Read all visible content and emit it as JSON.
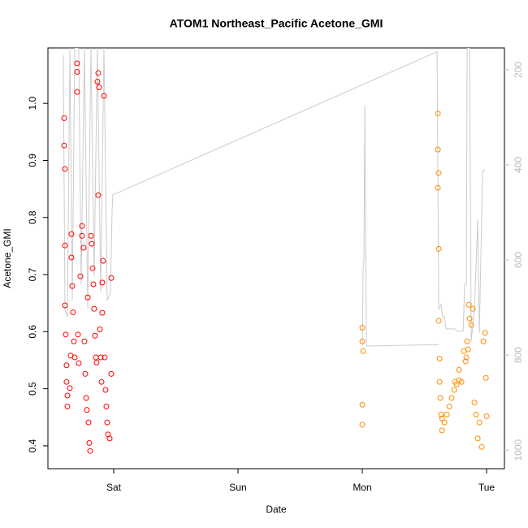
{
  "chart_data": {
    "type": "scatter",
    "title": "ATOM1 Northeast_Pacific Acetone_GMI",
    "x_label": "Date",
    "y_label": "Acetone_GMI",
    "xlim": [
      -12.7,
      75.45
    ],
    "xticks": [
      {
        "value": 0,
        "label": "Sat"
      },
      {
        "value": 24,
        "label": "Sun"
      },
      {
        "value": 48,
        "label": "Mon"
      },
      {
        "value": 72,
        "label": "Tue"
      }
    ],
    "ylim": [
      0.36,
      1.097
    ],
    "yticks": [
      0.4,
      0.5,
      0.6,
      0.7,
      0.8,
      0.9,
      {
        "value": 1,
        "label": "1.0"
      }
    ],
    "y2lim": [
      1039,
      154
    ],
    "y2ticks": [
      200,
      400,
      600,
      800,
      1000
    ],
    "y2_color": "#bbbbbb",
    "series": [
      {
        "color": "#ff0000",
        "mode": "points",
        "x": [
          -9.57,
          -9.57,
          -9.41,
          -9.41,
          -9.41,
          -9.26,
          -9.1,
          -9.1,
          -8.94,
          -8.94,
          -8.47,
          -8.32,
          -8.16,
          -8.16,
          -8.0,
          -7.85,
          -7.69,
          -7.53,
          -7.06,
          -7.06,
          -7.06,
          -6.9,
          -6.75,
          -6.43,
          -6.12,
          -6.12,
          -5.81,
          -5.65,
          -5.49,
          -5.33,
          -5.18,
          -5.02,
          -4.86,
          -4.71,
          -4.55,
          -4.39,
          -4.24,
          -4.08,
          -3.92,
          -3.77,
          -3.61,
          -3.45,
          -3.3,
          -3.14,
          -2.98,
          -2.98,
          -2.82,
          -2.67,
          -2.51,
          -2.35,
          -2.2,
          -2.2,
          -2.04,
          -1.88,
          -1.73,
          -1.57,
          -1.41,
          -1.26,
          -1.1,
          -0.78,
          -0.47,
          -0.47
        ],
        "values": [
          0.974,
          0.926,
          0.885,
          0.751,
          0.646,
          0.595,
          0.541,
          0.512,
          0.488,
          0.469,
          0.501,
          0.558,
          0.73,
          0.771,
          0.68,
          0.634,
          0.583,
          0.555,
          1.07,
          1.055,
          1.02,
          0.595,
          0.545,
          0.697,
          0.785,
          0.768,
          0.747,
          0.583,
          0.526,
          0.484,
          0.463,
          0.66,
          0.441,
          0.405,
          0.391,
          0.768,
          0.754,
          0.711,
          0.683,
          0.64,
          0.593,
          0.555,
          0.546,
          1.038,
          1.053,
          0.839,
          1.028,
          0.604,
          0.555,
          0.512,
          0.686,
          0.633,
          0.724,
          1.013,
          0.555,
          0.498,
          0.469,
          0.441,
          0.42,
          0.413,
          0.694,
          0.526
        ]
      },
      {
        "color": "#ff8c00",
        "mode": "points",
        "x": [
          48.01,
          48.01,
          48.17,
          48.01,
          48.01,
          62.6,
          62.6,
          62.76,
          62.6,
          62.76,
          62.76,
          62.92,
          62.92,
          63.07,
          63.23,
          63.39,
          63.39,
          63.86,
          64.33,
          64.8,
          65.27,
          65.74,
          65.9,
          66.21,
          66.68,
          66.68,
          67.15,
          67.62,
          67.94,
          68.09,
          68.25,
          68.41,
          68.56,
          68.72,
          69.04,
          69.35,
          69.66,
          69.98,
          70.29,
          70.61,
          71.08,
          71.39,
          71.7,
          71.86,
          72.02
        ],
        "values": [
          0.607,
          0.583,
          0.566,
          0.472,
          0.437,
          0.982,
          0.919,
          0.878,
          0.852,
          0.745,
          0.619,
          0.553,
          0.512,
          0.484,
          0.455,
          0.427,
          0.448,
          0.441,
          0.455,
          0.469,
          0.484,
          0.498,
          0.512,
          0.508,
          0.515,
          0.533,
          0.512,
          0.566,
          0.548,
          0.555,
          0.583,
          0.569,
          0.647,
          0.623,
          0.612,
          0.64,
          0.476,
          0.455,
          0.413,
          0.441,
          0.398,
          0.583,
          0.598,
          0.519,
          0.452
        ]
      },
      {
        "color": "#cccccc",
        "mode": "lines",
        "axis": "y2",
        "x": [
          -9.73,
          -9.41,
          -8.94,
          -8.47,
          -8.0,
          -7.53,
          -6.75,
          -6.28,
          -5.65,
          -5.02,
          -4.39,
          -3.77,
          -3.14,
          -2.51,
          -1.88,
          -1.26,
          -0.63,
          -0.31,
          -0.16,
          62.45,
          62.76,
          63.23,
          63.55,
          63.86,
          64.17,
          65.9,
          66.21,
          67.47,
          67.78,
          68.09,
          68.25,
          68.72,
          69.04,
          69.66,
          70.29,
          70.61,
          71.23,
          71.7,
          55,
          48.01,
          48.17,
          48.33,
          48.49,
          48.8,
          62.76
        ],
        "values": [
          169,
          703,
          720,
          154,
          685,
          154,
          154,
          651,
          154,
          703,
          154,
          634,
          154,
          668,
          154,
          685,
          668,
          497,
          463,
          162,
          703,
          694,
          720,
          720,
          745,
          745,
          750,
          750,
          651,
          651,
          154,
          154,
          771,
          703,
          515,
          754,
          415,
          409,
          null,
          780,
          617,
          600,
          275,
          781,
          778
        ]
      }
    ]
  }
}
